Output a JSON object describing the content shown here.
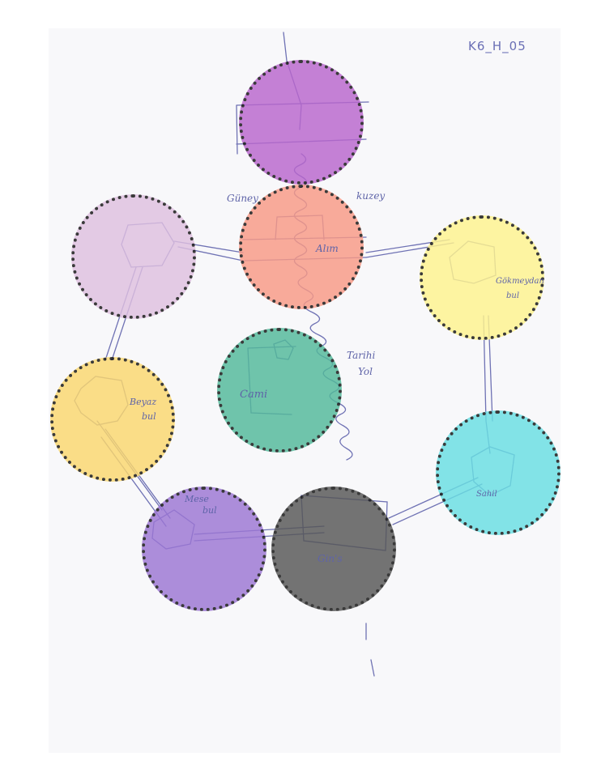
{
  "sheet_id": "K6_H_05",
  "regions": [
    {
      "id": "top",
      "color": "#b966cd"
    },
    {
      "id": "center",
      "color": "#f89a86"
    },
    {
      "id": "left-upper",
      "color": "#dfc0e0"
    },
    {
      "id": "right-upper",
      "color": "#fff48e"
    },
    {
      "id": "middle",
      "color": "#52b99a"
    },
    {
      "id": "left-lower",
      "color": "#fbd86e"
    },
    {
      "id": "right-lower",
      "color": "#69dfe3"
    },
    {
      "id": "bottom-left",
      "color": "#9c76d4"
    },
    {
      "id": "bottom-right",
      "color": "#565656"
    }
  ],
  "handwriting": {
    "center_left": "Güney",
    "center_right": "kuzey",
    "center_middle": "Alım",
    "middle": "Cami",
    "middle_right_1": "Tarihi",
    "middle_right_2": "Yol",
    "right_upper_1": "Gökmeydan",
    "right_upper_2": "bul",
    "left_lower_1": "Beyaz",
    "left_lower_2": "bul",
    "bottom_left_1": "Mese",
    "bottom_left_2": "bul",
    "bottom_right": "Gin's",
    "right_lower": "Sahil"
  }
}
